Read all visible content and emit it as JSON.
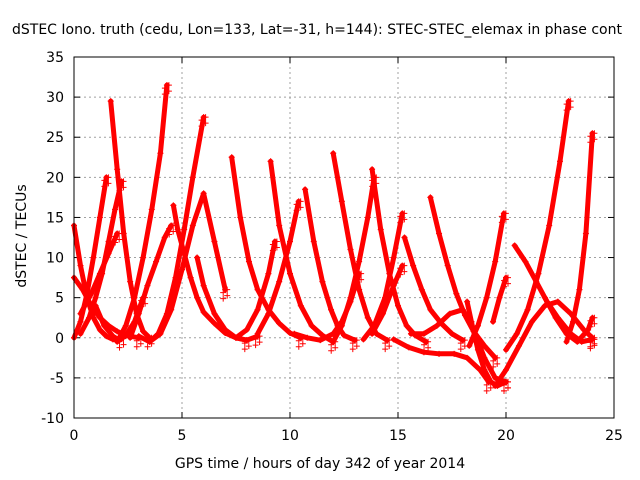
{
  "chart_data": {
    "type": "scatter",
    "title": "dSTEC Iono. truth (cedu, Lon=133, Lat=-31, h=144): STEC-STEC_elemax in phase cont",
    "xlabel": "GPS time / hours of day 342 of year 2014",
    "ylabel": "dSTEC  / TECUs",
    "xlim": [
      0,
      25
    ],
    "ylim": [
      -10,
      35
    ],
    "xticks": [
      "0",
      "5",
      "10",
      "15",
      "20",
      "25"
    ],
    "yticks": [
      "-10",
      "-5",
      "0",
      "5",
      "10",
      "15",
      "20",
      "25",
      "30",
      "35"
    ],
    "grid": true,
    "marker": "plus",
    "color": "#ff0000",
    "series": [
      {
        "x": [
          0.0,
          0.3,
          0.6,
          0.9,
          1.2,
          1.5,
          1.8,
          2.0,
          2.2
        ],
        "y": [
          14.0,
          9.0,
          5.0,
          2.5,
          1.0,
          0.2,
          -0.2,
          -0.3,
          -0.1
        ]
      },
      {
        "x": [
          0.0,
          0.3,
          0.6,
          0.9,
          1.2,
          1.5
        ],
        "y": [
          0.0,
          2.0,
          5.5,
          10.0,
          15.0,
          20.0
        ]
      },
      {
        "x": [
          0.0,
          0.4,
          0.8,
          1.2,
          1.6,
          2.0,
          2.4,
          3.0
        ],
        "y": [
          7.5,
          6.0,
          4.0,
          2.5,
          1.5,
          0.8,
          0.3,
          0.0
        ]
      },
      {
        "x": [
          0.3,
          0.7,
          1.0,
          1.3,
          1.6,
          1.9,
          2.2
        ],
        "y": [
          0.5,
          2.5,
          5.0,
          8.0,
          12.0,
          16.0,
          19.5
        ]
      },
      {
        "x": [
          0.3,
          0.8,
          1.2,
          1.6,
          2.0
        ],
        "y": [
          3.0,
          5.5,
          8.0,
          10.5,
          13.0
        ]
      },
      {
        "x": [
          1.7,
          2.0,
          2.3,
          2.6,
          2.9,
          3.2,
          3.5
        ],
        "y": [
          29.5,
          21.0,
          13.0,
          7.0,
          3.0,
          0.8,
          0.0
        ]
      },
      {
        "x": [
          1.0,
          1.4,
          1.8,
          2.1,
          2.4,
          2.8,
          3.2
        ],
        "y": [
          4.0,
          1.5,
          0.2,
          -0.3,
          0.3,
          2.0,
          5.0
        ]
      },
      {
        "x": [
          2.0,
          2.4,
          2.8,
          3.2,
          3.6,
          4.0,
          4.3
        ],
        "y": [
          -0.5,
          1.5,
          5.0,
          10.0,
          16.0,
          23.0,
          31.5
        ]
      },
      {
        "x": [
          2.6,
          3.0,
          3.4,
          3.8,
          4.2,
          4.5
        ],
        "y": [
          0.0,
          3.0,
          6.5,
          9.5,
          12.5,
          14.0
        ]
      },
      {
        "x": [
          3.5,
          3.9,
          4.3,
          4.7,
          5.1,
          5.5,
          6.0
        ],
        "y": [
          -0.5,
          0.5,
          3.0,
          7.5,
          13.5,
          20.0,
          27.5
        ]
      },
      {
        "x": [
          3.0,
          3.5,
          4.0,
          4.5,
          5.0,
          5.5,
          6.0,
          6.5,
          7.0
        ],
        "y": [
          0.2,
          -0.5,
          0.5,
          3.5,
          8.5,
          14.0,
          18.0,
          12.0,
          6.0
        ]
      },
      {
        "x": [
          4.6,
          4.8,
          5.1,
          5.4,
          5.7,
          6.0,
          6.5,
          7.0,
          7.5,
          8.0
        ],
        "y": [
          16.5,
          13.5,
          10.5,
          7.5,
          5.0,
          3.2,
          1.8,
          0.6,
          0.0,
          -0.3
        ]
      },
      {
        "x": [
          5.7,
          6.0,
          6.5,
          7.0,
          7.5,
          8.0,
          8.5
        ],
        "y": [
          10.0,
          6.5,
          3.0,
          1.0,
          0.0,
          -0.3,
          0.2
        ]
      },
      {
        "x": [
          7.3,
          7.7,
          8.1,
          8.5,
          9.0,
          9.5,
          10.0,
          10.5
        ],
        "y": [
          22.5,
          15.0,
          9.5,
          6.0,
          3.5,
          1.8,
          0.6,
          0.0
        ]
      },
      {
        "x": [
          7.5,
          8.0,
          8.5,
          9.0,
          9.3
        ],
        "y": [
          0.0,
          1.0,
          3.5,
          8.0,
          12.0
        ]
      },
      {
        "x": [
          8.5,
          9.0,
          9.5,
          10.0,
          10.4
        ],
        "y": [
          0.5,
          3.0,
          7.0,
          12.0,
          17.0
        ]
      },
      {
        "x": [
          9.1,
          9.5,
          10.0,
          10.5,
          11.0,
          11.5,
          12.0
        ],
        "y": [
          22.0,
          14.0,
          8.0,
          4.0,
          1.5,
          0.3,
          -0.5
        ]
      },
      {
        "x": [
          10.7,
          11.1,
          11.5,
          11.9,
          12.2,
          12.5,
          13.0
        ],
        "y": [
          18.5,
          12.0,
          7.0,
          3.5,
          1.5,
          0.3,
          -0.3
        ]
      },
      {
        "x": [
          10.2,
          10.8,
          11.4,
          12.0,
          12.4,
          12.8,
          13.2
        ],
        "y": [
          0.5,
          0.0,
          -0.3,
          0.5,
          2.0,
          4.5,
          8.0
        ]
      },
      {
        "x": [
          12.0,
          12.4,
          12.8,
          13.2,
          13.6,
          14.0,
          14.5
        ],
        "y": [
          23.0,
          17.0,
          11.0,
          6.0,
          2.5,
          0.5,
          -0.3
        ]
      },
      {
        "x": [
          12.0,
          12.4,
          12.8,
          13.2,
          13.6,
          13.9
        ],
        "y": [
          -0.5,
          1.5,
          5.0,
          9.5,
          15.0,
          20.0
        ]
      },
      {
        "x": [
          13.8,
          14.2,
          14.6,
          15.0,
          15.4,
          15.8,
          16.3
        ],
        "y": [
          21.0,
          13.5,
          8.0,
          4.0,
          1.5,
          0.3,
          -0.5
        ]
      },
      {
        "x": [
          13.4,
          13.9,
          14.4,
          14.8,
          15.2
        ],
        "y": [
          -0.2,
          1.5,
          5.0,
          10.0,
          15.5
        ]
      },
      {
        "x": [
          13.8,
          14.3,
          14.8,
          15.2
        ],
        "y": [
          0.5,
          3.0,
          6.5,
          9.0
        ]
      },
      {
        "x": [
          15.3,
          15.7,
          16.1,
          16.5,
          17.0,
          17.5,
          18.0
        ],
        "y": [
          12.5,
          9.0,
          6.0,
          3.5,
          1.8,
          0.5,
          -0.3
        ]
      },
      {
        "x": [
          15.6,
          16.2,
          16.8,
          17.4,
          18.0,
          18.5,
          19.0,
          19.5,
          20.0
        ],
        "y": [
          0.5,
          0.5,
          1.5,
          3.0,
          3.5,
          1.0,
          -2.5,
          -5.0,
          -5.5
        ]
      },
      {
        "x": [
          14.8,
          15.5,
          16.2,
          16.9,
          17.6,
          18.2,
          18.8,
          19.2
        ],
        "y": [
          -0.2,
          -1.2,
          -1.8,
          -2.0,
          -2.0,
          -2.5,
          -4.0,
          -5.5
        ]
      },
      {
        "x": [
          16.5,
          16.9,
          17.3,
          17.7,
          18.1,
          18.5,
          19.0,
          19.5
        ],
        "y": [
          17.5,
          13.0,
          9.0,
          5.5,
          2.8,
          0.8,
          -1.0,
          -2.5
        ]
      },
      {
        "x": [
          18.2,
          18.4,
          18.7,
          19.0,
          19.3,
          19.6,
          20.0
        ],
        "y": [
          4.5,
          2.0,
          -1.5,
          -4.0,
          -5.5,
          -6.0,
          -5.5
        ]
      },
      {
        "x": [
          18.3,
          18.7,
          19.1,
          19.5,
          19.9
        ],
        "y": [
          -1.0,
          1.5,
          5.0,
          9.5,
          15.5
        ]
      },
      {
        "x": [
          19.4,
          19.7,
          20.0
        ],
        "y": [
          2.0,
          5.0,
          7.5
        ]
      },
      {
        "x": [
          19.5,
          20.0,
          20.6,
          21.2,
          21.8,
          22.4,
          23.0,
          23.6,
          24.0
        ],
        "y": [
          -6.0,
          -4.0,
          -1.0,
          2.0,
          4.0,
          4.5,
          3.0,
          1.0,
          0.0
        ]
      },
      {
        "x": [
          20.4,
          20.9,
          21.4,
          21.9,
          22.4,
          23.0,
          23.5,
          24.0
        ],
        "y": [
          11.5,
          9.5,
          7.0,
          4.5,
          2.5,
          0.5,
          -0.5,
          -0.2
        ]
      },
      {
        "x": [
          20.0,
          20.5,
          21.0,
          21.5,
          22.0,
          22.5,
          22.9
        ],
        "y": [
          -1.5,
          0.5,
          3.5,
          8.0,
          14.0,
          22.0,
          29.5
        ]
      },
      {
        "x": [
          21.8,
          22.3,
          22.8,
          23.3,
          23.8,
          24.0
        ],
        "y": [
          5.0,
          2.5,
          0.5,
          -0.5,
          1.0,
          2.5
        ]
      },
      {
        "x": [
          22.8,
          23.1,
          23.4,
          23.7,
          24.0
        ],
        "y": [
          -0.5,
          2.0,
          6.0,
          13.0,
          25.5
        ]
      }
    ]
  }
}
